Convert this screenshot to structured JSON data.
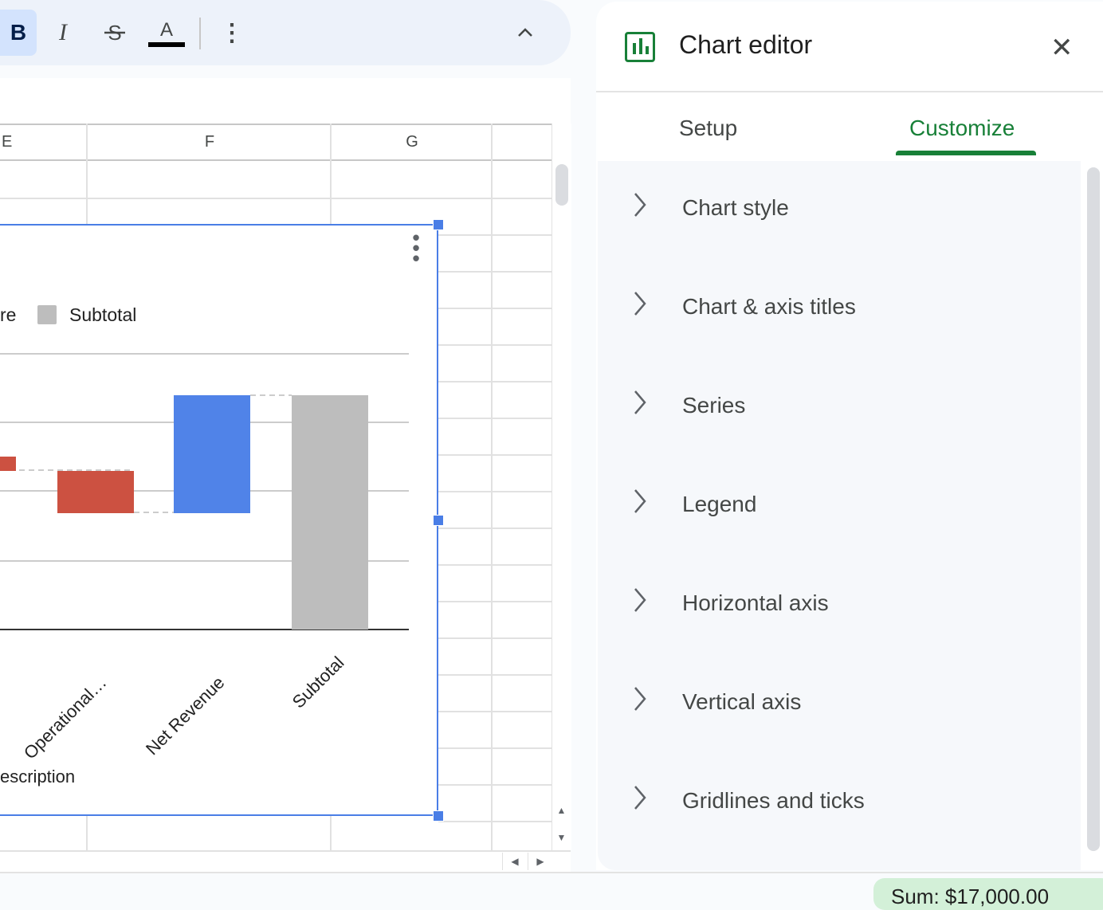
{
  "toolbar": {
    "bold_label": "B",
    "italic_label": "I",
    "strike_label": "S",
    "text_color_label": "A",
    "more_label": "⋮",
    "collapse_label": "⌃"
  },
  "sheet": {
    "columns": [
      "E",
      "F",
      "G"
    ]
  },
  "chart": {
    "legend_partial_text": "re",
    "legend_subtotal": "Subtotal",
    "categories": [
      "Operational…",
      "Net Revenue",
      "Subtotal"
    ],
    "x_axis_title": "escription",
    "menu_label": "⋮",
    "colors": {
      "decrease": "#cc5141",
      "total": "#5083e8",
      "subtotal": "#bdbdbd"
    }
  },
  "editor": {
    "title": "Chart editor",
    "close_label": "✕",
    "tabs": [
      {
        "label": "Setup",
        "active": false
      },
      {
        "label": "Customize",
        "active": true
      }
    ],
    "sections": [
      {
        "label": "Chart style"
      },
      {
        "label": "Chart & axis titles"
      },
      {
        "label": "Series"
      },
      {
        "label": "Legend"
      },
      {
        "label": "Horizontal axis"
      },
      {
        "label": "Vertical axis"
      },
      {
        "label": "Gridlines and ticks"
      }
    ]
  },
  "status": {
    "sum_label": "Sum: $17,000.00"
  }
}
